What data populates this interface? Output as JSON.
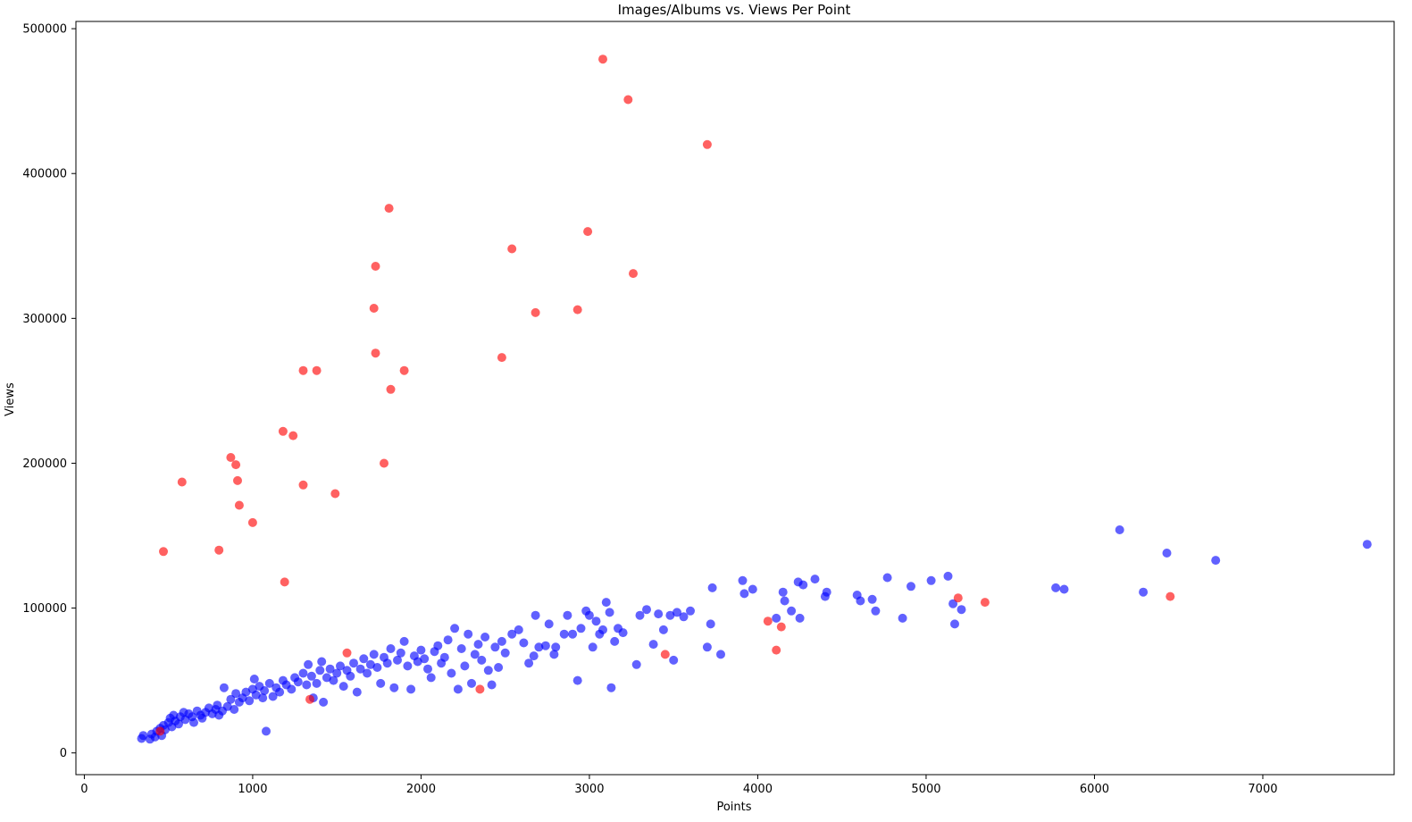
{
  "chart_data": {
    "type": "scatter",
    "title": "Images/Albums vs. Views Per Point",
    "xlabel": "Points",
    "ylabel": "Views",
    "xlim": [
      -50,
      7780
    ],
    "ylim": [
      -15000,
      505000
    ],
    "x_ticks": [
      "0",
      "1000",
      "2000",
      "3000",
      "4000",
      "5000",
      "6000",
      "7000"
    ],
    "y_ticks": [
      "0",
      "100000",
      "200000",
      "300000",
      "400000",
      "500000"
    ],
    "grid": false,
    "legend": "none",
    "series": [
      {
        "color": "#0000ff",
        "points": [
          [
            340,
            10000
          ],
          [
            350,
            12000
          ],
          [
            390,
            9500
          ],
          [
            400,
            13000
          ],
          [
            420,
            11000
          ],
          [
            430,
            15000
          ],
          [
            450,
            17000
          ],
          [
            460,
            12000
          ],
          [
            470,
            19000
          ],
          [
            480,
            16000
          ],
          [
            500,
            21000
          ],
          [
            510,
            24000
          ],
          [
            520,
            18000
          ],
          [
            530,
            26000
          ],
          [
            540,
            22000
          ],
          [
            560,
            20000
          ],
          [
            570,
            25000
          ],
          [
            590,
            28000
          ],
          [
            600,
            23000
          ],
          [
            620,
            27000
          ],
          [
            640,
            25000
          ],
          [
            650,
            21000
          ],
          [
            670,
            29000
          ],
          [
            690,
            26000
          ],
          [
            700,
            24000
          ],
          [
            720,
            28000
          ],
          [
            740,
            31000
          ],
          [
            760,
            27000
          ],
          [
            780,
            30000
          ],
          [
            790,
            33000
          ],
          [
            800,
            26000
          ],
          [
            820,
            29000
          ],
          [
            830,
            45000
          ],
          [
            850,
            32000
          ],
          [
            870,
            37000
          ],
          [
            890,
            30000
          ],
          [
            900,
            41000
          ],
          [
            920,
            35000
          ],
          [
            940,
            38000
          ],
          [
            960,
            42000
          ],
          [
            980,
            36000
          ],
          [
            1000,
            44000
          ],
          [
            1010,
            51000
          ],
          [
            1020,
            40000
          ],
          [
            1040,
            46000
          ],
          [
            1060,
            38000
          ],
          [
            1070,
            43000
          ],
          [
            1080,
            15000
          ],
          [
            1100,
            48000
          ],
          [
            1120,
            39000
          ],
          [
            1140,
            45000
          ],
          [
            1160,
            42000
          ],
          [
            1180,
            50000
          ],
          [
            1200,
            47000
          ],
          [
            1230,
            44000
          ],
          [
            1250,
            52000
          ],
          [
            1270,
            49000
          ],
          [
            1300,
            55000
          ],
          [
            1320,
            47000
          ],
          [
            1330,
            61000
          ],
          [
            1350,
            53000
          ],
          [
            1360,
            38000
          ],
          [
            1380,
            48000
          ],
          [
            1400,
            57000
          ],
          [
            1410,
            63000
          ],
          [
            1420,
            35000
          ],
          [
            1440,
            52000
          ],
          [
            1460,
            58000
          ],
          [
            1480,
            50000
          ],
          [
            1500,
            55000
          ],
          [
            1520,
            60000
          ],
          [
            1540,
            46000
          ],
          [
            1560,
            57000
          ],
          [
            1580,
            53000
          ],
          [
            1600,
            62000
          ],
          [
            1620,
            42000
          ],
          [
            1640,
            58000
          ],
          [
            1660,
            65000
          ],
          [
            1680,
            55000
          ],
          [
            1700,
            61000
          ],
          [
            1720,
            68000
          ],
          [
            1740,
            59000
          ],
          [
            1760,
            48000
          ],
          [
            1780,
            66000
          ],
          [
            1800,
            62000
          ],
          [
            1820,
            72000
          ],
          [
            1840,
            45000
          ],
          [
            1860,
            64000
          ],
          [
            1880,
            69000
          ],
          [
            1900,
            77000
          ],
          [
            1920,
            60000
          ],
          [
            1940,
            44000
          ],
          [
            1960,
            67000
          ],
          [
            1980,
            63000
          ],
          [
            2000,
            71000
          ],
          [
            2020,
            65000
          ],
          [
            2040,
            58000
          ],
          [
            2060,
            52000
          ],
          [
            2080,
            70000
          ],
          [
            2100,
            74000
          ],
          [
            2120,
            62000
          ],
          [
            2140,
            66000
          ],
          [
            2160,
            78000
          ],
          [
            2180,
            55000
          ],
          [
            2200,
            86000
          ],
          [
            2220,
            44000
          ],
          [
            2240,
            72000
          ],
          [
            2260,
            60000
          ],
          [
            2280,
            82000
          ],
          [
            2300,
            48000
          ],
          [
            2320,
            68000
          ],
          [
            2340,
            75000
          ],
          [
            2360,
            64000
          ],
          [
            2380,
            80000
          ],
          [
            2400,
            57000
          ],
          [
            2420,
            47000
          ],
          [
            2440,
            73000
          ],
          [
            2460,
            59000
          ],
          [
            2480,
            77000
          ],
          [
            2500,
            69000
          ],
          [
            2540,
            82000
          ],
          [
            2580,
            85000
          ],
          [
            2610,
            76000
          ],
          [
            2640,
            62000
          ],
          [
            2670,
            67000
          ],
          [
            2680,
            95000
          ],
          [
            2700,
            73000
          ],
          [
            2740,
            74000
          ],
          [
            2760,
            89000
          ],
          [
            2790,
            68000
          ],
          [
            2800,
            73000
          ],
          [
            2850,
            82000
          ],
          [
            2870,
            95000
          ],
          [
            2900,
            82000
          ],
          [
            2930,
            50000
          ],
          [
            2950,
            86000
          ],
          [
            2980,
            98000
          ],
          [
            3000,
            95000
          ],
          [
            3020,
            73000
          ],
          [
            3040,
            91000
          ],
          [
            3060,
            82000
          ],
          [
            3080,
            85000
          ],
          [
            3100,
            104000
          ],
          [
            3120,
            97000
          ],
          [
            3130,
            45000
          ],
          [
            3150,
            77000
          ],
          [
            3170,
            86000
          ],
          [
            3200,
            83000
          ],
          [
            3280,
            61000
          ],
          [
            3300,
            95000
          ],
          [
            3340,
            99000
          ],
          [
            3380,
            75000
          ],
          [
            3410,
            96000
          ],
          [
            3440,
            85000
          ],
          [
            3480,
            95000
          ],
          [
            3500,
            64000
          ],
          [
            3520,
            97000
          ],
          [
            3560,
            94000
          ],
          [
            3600,
            98000
          ],
          [
            3700,
            73000
          ],
          [
            3720,
            89000
          ],
          [
            3730,
            114000
          ],
          [
            3780,
            68000
          ],
          [
            3910,
            119000
          ],
          [
            3920,
            110000
          ],
          [
            3970,
            113000
          ],
          [
            4110,
            93000
          ],
          [
            4150,
            111000
          ],
          [
            4160,
            105000
          ],
          [
            4200,
            98000
          ],
          [
            4240,
            118000
          ],
          [
            4250,
            93000
          ],
          [
            4270,
            116000
          ],
          [
            4340,
            120000
          ],
          [
            4400,
            108000
          ],
          [
            4410,
            111000
          ],
          [
            4590,
            109000
          ],
          [
            4610,
            105000
          ],
          [
            4680,
            106000
          ],
          [
            4700,
            98000
          ],
          [
            4770,
            121000
          ],
          [
            4860,
            93000
          ],
          [
            4910,
            115000
          ],
          [
            5030,
            119000
          ],
          [
            5130,
            122000
          ],
          [
            5160,
            103000
          ],
          [
            5170,
            89000
          ],
          [
            5210,
            99000
          ],
          [
            5770,
            114000
          ],
          [
            5820,
            113000
          ],
          [
            6150,
            154000
          ],
          [
            6290,
            111000
          ],
          [
            6430,
            138000
          ],
          [
            6720,
            133000
          ],
          [
            7620,
            144000
          ]
        ]
      },
      {
        "color": "#ff0000",
        "points": [
          [
            470,
            139000
          ],
          [
            580,
            187000
          ],
          [
            800,
            140000
          ],
          [
            870,
            204000
          ],
          [
            900,
            199000
          ],
          [
            910,
            188000
          ],
          [
            920,
            171000
          ],
          [
            1000,
            159000
          ],
          [
            1180,
            222000
          ],
          [
            1190,
            118000
          ],
          [
            1240,
            219000
          ],
          [
            1300,
            264000
          ],
          [
            1300,
            185000
          ],
          [
            1340,
            37000
          ],
          [
            1380,
            264000
          ],
          [
            1490,
            179000
          ],
          [
            1560,
            69000
          ],
          [
            1720,
            307000
          ],
          [
            1730,
            336000
          ],
          [
            1730,
            276000
          ],
          [
            1780,
            200000
          ],
          [
            1810,
            376000
          ],
          [
            1820,
            251000
          ],
          [
            1900,
            264000
          ],
          [
            2350,
            44000
          ],
          [
            2480,
            273000
          ],
          [
            2540,
            348000
          ],
          [
            2680,
            304000
          ],
          [
            2930,
            306000
          ],
          [
            2990,
            360000
          ],
          [
            3080,
            479000
          ],
          [
            3230,
            451000
          ],
          [
            3260,
            331000
          ],
          [
            3450,
            68000
          ],
          [
            3700,
            420000
          ],
          [
            4060,
            91000
          ],
          [
            4110,
            71000
          ],
          [
            4140,
            87000
          ],
          [
            5190,
            107000
          ],
          [
            5350,
            104000
          ],
          [
            6450,
            108000
          ],
          [
            450,
            15000
          ]
        ]
      }
    ]
  }
}
